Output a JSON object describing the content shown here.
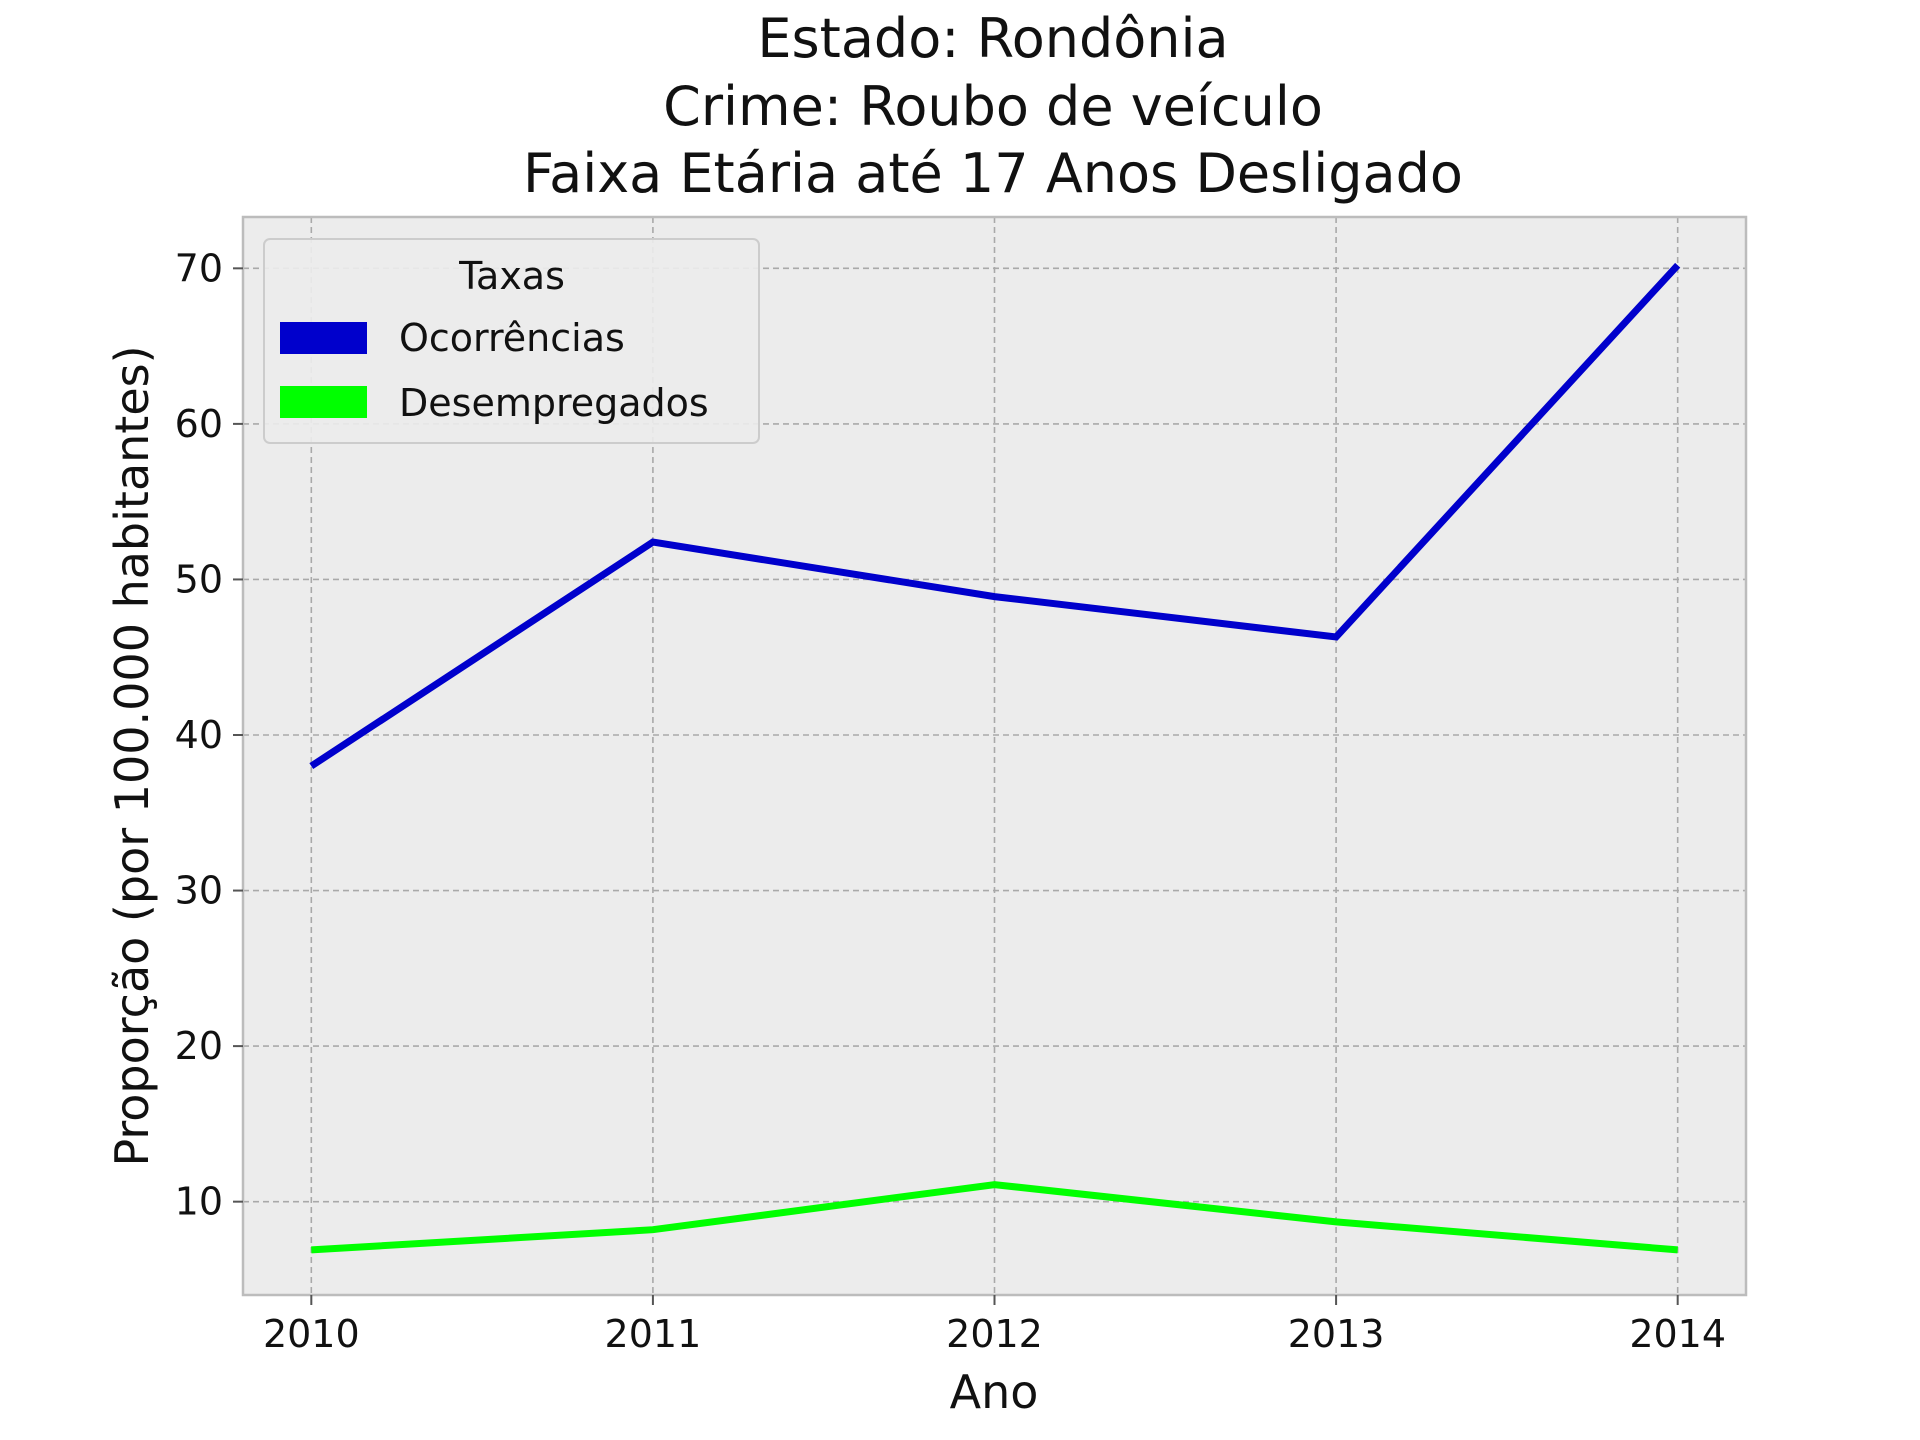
{
  "chart_data": {
    "type": "line",
    "title_lines": [
      "Estado: Rondônia",
      "Crime: Roubo de veículo",
      "Faixa Etária até 17 Anos   Desligado"
    ],
    "xlabel": "Ano",
    "ylabel": "Proporção (por 100.000 habitantes)",
    "x": [
      2010,
      2011,
      2012,
      2013,
      2014
    ],
    "x_tick_labels": [
      "2010",
      "2011",
      "2012",
      "2013",
      "2014"
    ],
    "y_ticks": [
      10,
      20,
      30,
      40,
      50,
      60,
      70
    ],
    "y_tick_labels": [
      "10",
      "20",
      "30",
      "40",
      "50",
      "60",
      "70"
    ],
    "xlim": [
      2009.8,
      2014.2
    ],
    "ylim": [
      4.0,
      73.3
    ],
    "grid": true,
    "legend": {
      "title": "Taxas",
      "placement": "top-left"
    },
    "series": [
      {
        "name": "Ocorrências",
        "color": "#0000cc",
        "values": [
          38.0,
          52.4,
          48.9,
          46.3,
          70.2
        ]
      },
      {
        "name": "Desempregados",
        "color": "#00ff00",
        "values": [
          6.9,
          8.2,
          11.1,
          8.7,
          6.9
        ]
      }
    ],
    "background_color": "#ececec"
  }
}
